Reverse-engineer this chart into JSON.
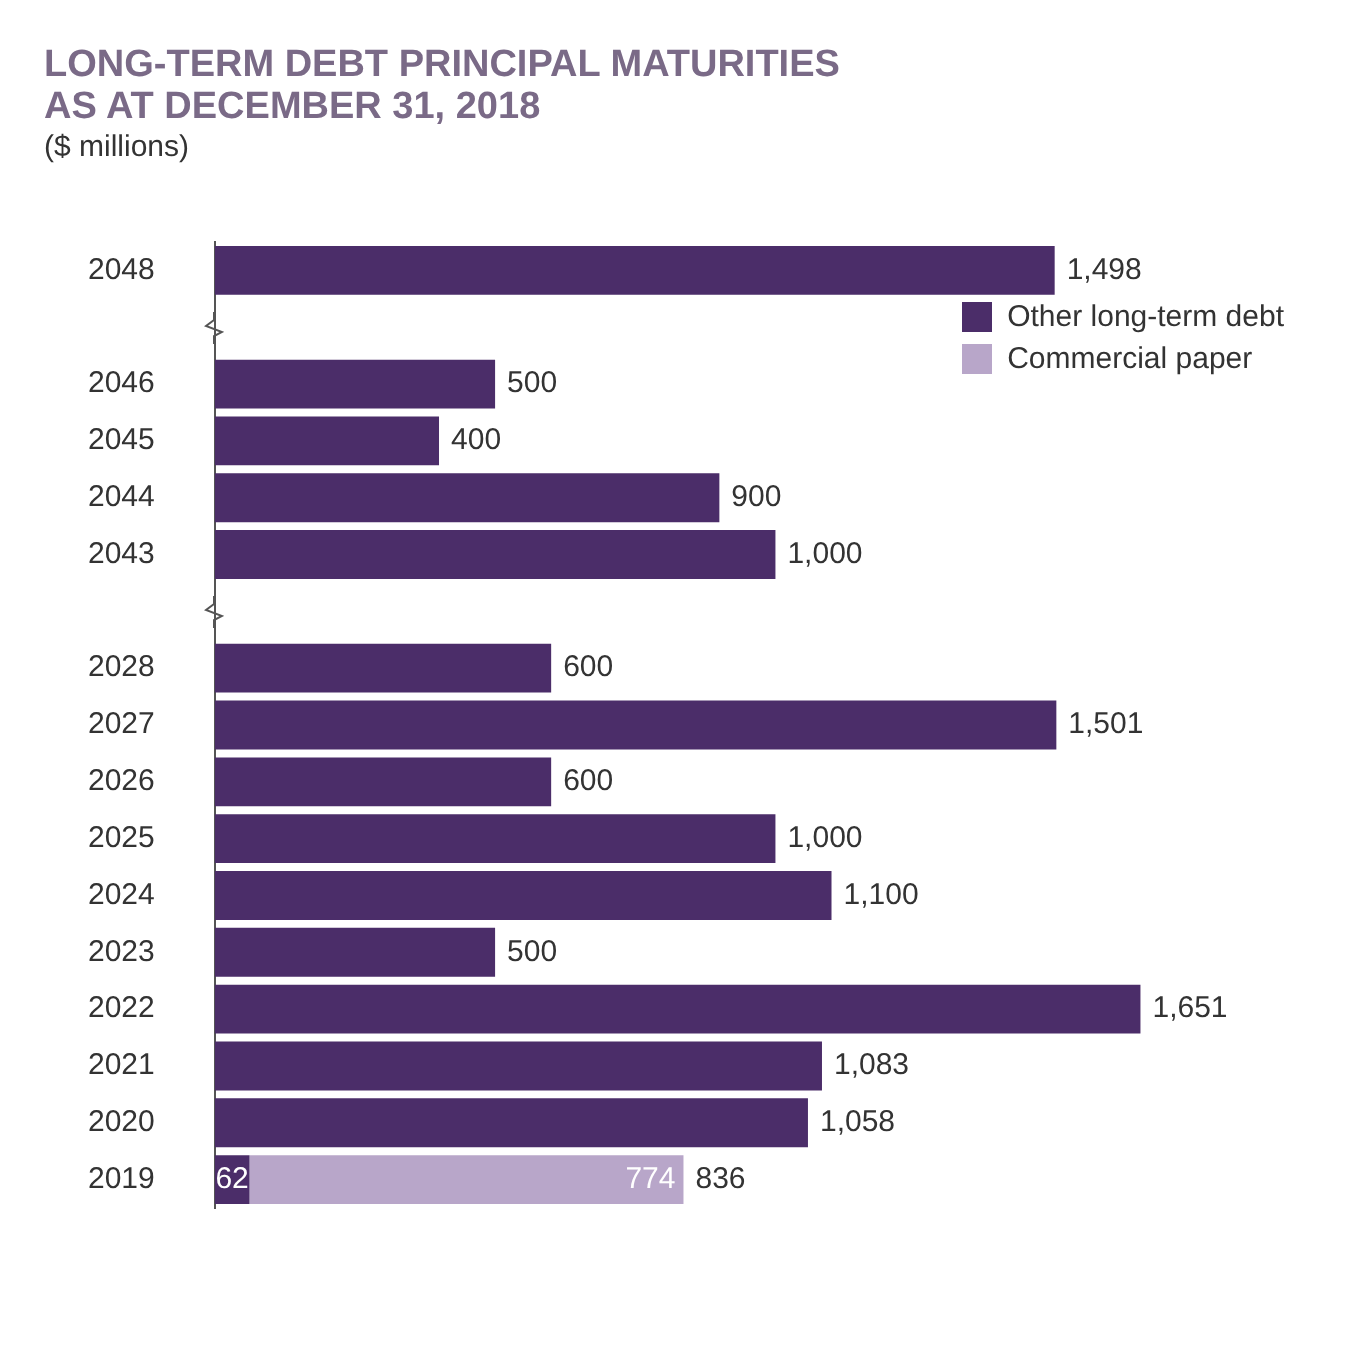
{
  "chart_data": {
    "type": "bar",
    "orientation": "horizontal",
    "stacked": true,
    "title": "LONG-TERM DEBT PRINCIPAL MATURITIES\nAS AT DECEMBER 31, 2018",
    "subtitle": "($ millions)",
    "categories": [
      "2048",
      null,
      "2046",
      "2045",
      "2044",
      "2043",
      null,
      "2028",
      "2027",
      "2026",
      "2025",
      "2024",
      "2023",
      "2022",
      "2021",
      "2020",
      "2019"
    ],
    "series": [
      {
        "name": "Other long-term debt",
        "color": "#4b2d69",
        "values": [
          1498,
          null,
          500,
          400,
          900,
          1000,
          null,
          600,
          1501,
          600,
          1000,
          1100,
          500,
          1651,
          1083,
          1058,
          62
        ],
        "value_labels": [
          "1,498",
          null,
          "500",
          "400",
          "900",
          "1,000",
          null,
          "600",
          "1,501",
          "600",
          "1,000",
          "1,100",
          "500",
          "1,651",
          "1,083",
          "1,058",
          "62"
        ]
      },
      {
        "name": "Commercial paper",
        "color": "#b8a6c9",
        "values": [
          null,
          null,
          null,
          null,
          null,
          null,
          null,
          null,
          null,
          null,
          null,
          null,
          null,
          null,
          null,
          null,
          774
        ],
        "value_labels": [
          null,
          null,
          null,
          null,
          null,
          null,
          null,
          null,
          null,
          null,
          null,
          null,
          null,
          null,
          null,
          null,
          "774"
        ]
      }
    ],
    "totals": [
      null,
      null,
      null,
      null,
      null,
      null,
      null,
      null,
      null,
      null,
      null,
      null,
      null,
      null,
      null,
      null,
      "836"
    ],
    "legend": "top right"
  }
}
